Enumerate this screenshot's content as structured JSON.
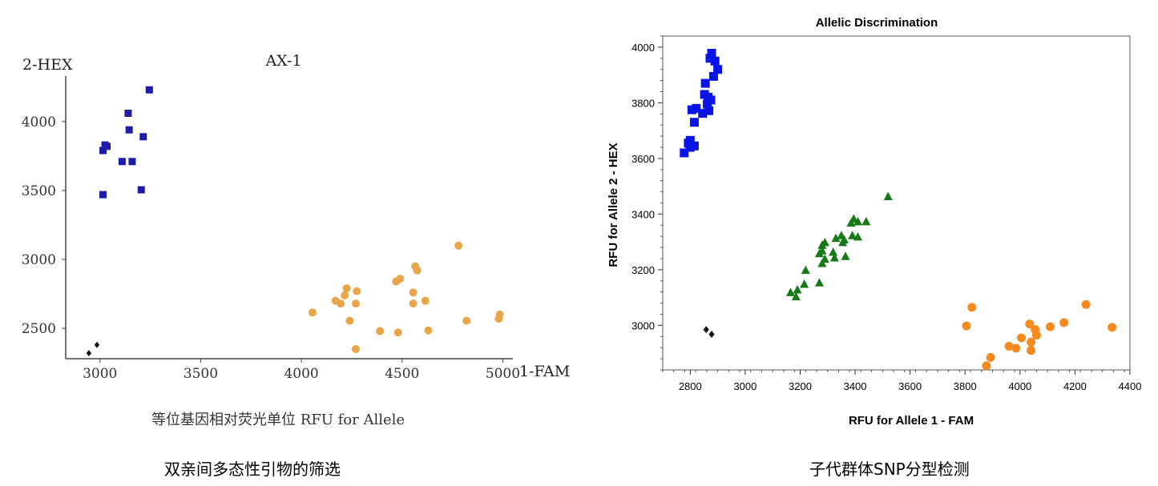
{
  "chart_data": [
    {
      "type": "scatter",
      "title": "AX-1",
      "xlabel": "1-FAM",
      "ylabel": "2-HEX",
      "xsublabel": "等位基因相对荧光单位 RFU for Allele",
      "caption": "双亲间多态性引物的筛选",
      "xlim": [
        2830,
        5050
      ],
      "ylim": [
        2280,
        4330
      ],
      "xticks": [
        3000,
        3500,
        4000,
        4500,
        5000
      ],
      "yticks": [
        2500,
        3000,
        3500,
        4000
      ],
      "grid": false,
      "series": [
        {
          "color": "#1c1ca8",
          "marker": "square",
          "points": [
            [
              3245,
              4230
            ],
            [
              3140,
              4060
            ],
            [
              3145,
              3940
            ],
            [
              3215,
              3890
            ],
            [
              3025,
              3830
            ],
            [
              3035,
              3820
            ],
            [
              3015,
              3790
            ],
            [
              3110,
              3710
            ],
            [
              3160,
              3710
            ],
            [
              3015,
              3470
            ],
            [
              3205,
              3505
            ]
          ]
        },
        {
          "color": "#e8a54a",
          "marker": "circle",
          "points": [
            [
              4780,
              3100
            ],
            [
              4565,
              2950
            ],
            [
              4575,
              2920
            ],
            [
              4490,
              2860
            ],
            [
              4470,
              2840
            ],
            [
              4225,
              2790
            ],
            [
              4275,
              2770
            ],
            [
              4555,
              2760
            ],
            [
              4215,
              2740
            ],
            [
              4170,
              2700
            ],
            [
              4195,
              2680
            ],
            [
              4270,
              2680
            ],
            [
              4555,
              2680
            ],
            [
              4615,
              2700
            ],
            [
              4055,
              2615
            ],
            [
              4985,
              2600
            ],
            [
              4980,
              2570
            ],
            [
              4820,
              2555
            ],
            [
              4240,
              2555
            ],
            [
              4390,
              2480
            ],
            [
              4480,
              2470
            ],
            [
              4630,
              2485
            ],
            [
              4270,
              2350
            ]
          ]
        },
        {
          "color": "#111111",
          "marker": "diamond",
          "points": [
            [
              2945,
              2320
            ],
            [
              2985,
              2380
            ]
          ]
        }
      ]
    },
    {
      "type": "scatter",
      "title": "Allelic Discrimination",
      "xlabel": "RFU for Allele 1 - FAM",
      "ylabel": "RFU for Allele 2 - HEX",
      "caption": "子代群体SNP分型检测",
      "xlim": [
        2700,
        4400
      ],
      "ylim": [
        2840,
        4040
      ],
      "xticks": [
        2800,
        3000,
        3200,
        3400,
        3600,
        3800,
        4000,
        4200,
        4400
      ],
      "yticks": [
        3000,
        3200,
        3400,
        3600,
        3800,
        4000
      ],
      "grid": false,
      "series": [
        {
          "color": "#0a14e6",
          "marker": "square",
          "points": [
            [
              2878,
              3978
            ],
            [
              2872,
              3960
            ],
            [
              2890,
              3950
            ],
            [
              2900,
              3920
            ],
            [
              2885,
              3895
            ],
            [
              2855,
              3870
            ],
            [
              2852,
              3830
            ],
            [
              2865,
              3820
            ],
            [
              2875,
              3810
            ],
            [
              2862,
              3795
            ],
            [
              2822,
              3780
            ],
            [
              2806,
              3775
            ],
            [
              2868,
              3772
            ],
            [
              2845,
              3762
            ],
            [
              2815,
              3730
            ],
            [
              2800,
              3665
            ],
            [
              2793,
              3655
            ],
            [
              2815,
              3645
            ],
            [
              2800,
              3640
            ],
            [
              2778,
              3620
            ]
          ]
        },
        {
          "color": "#157a15",
          "marker": "triangle",
          "points": [
            [
              3520,
              3465
            ],
            [
              3395,
              3385
            ],
            [
              3385,
              3370
            ],
            [
              3410,
              3375
            ],
            [
              3440,
              3375
            ],
            [
              3350,
              3325
            ],
            [
              3390,
              3325
            ],
            [
              3410,
              3320
            ],
            [
              3330,
              3315
            ],
            [
              3360,
              3310
            ],
            [
              3290,
              3300
            ],
            [
              3280,
              3290
            ],
            [
              3355,
              3300
            ],
            [
              3280,
              3270
            ],
            [
              3320,
              3265
            ],
            [
              3270,
              3260
            ],
            [
              3290,
              3240
            ],
            [
              3325,
              3245
            ],
            [
              3365,
              3250
            ],
            [
              3280,
              3225
            ],
            [
              3220,
              3200
            ],
            [
              3270,
              3155
            ],
            [
              3215,
              3150
            ],
            [
              3165,
              3120
            ],
            [
              3190,
              3130
            ],
            [
              3185,
              3105
            ]
          ]
        },
        {
          "color": "#f58a1f",
          "marker": "circle",
          "points": [
            [
              4240,
              3075
            ],
            [
              3825,
              3065
            ],
            [
              4160,
              3010
            ],
            [
              4035,
              3005
            ],
            [
              3805,
              2998
            ],
            [
              4110,
              2995
            ],
            [
              4335,
              2993
            ],
            [
              4055,
              2985
            ],
            [
              4060,
              2965
            ],
            [
              4005,
              2955
            ],
            [
              4040,
              2940
            ],
            [
              3960,
              2925
            ],
            [
              3985,
              2918
            ],
            [
              4040,
              2910
            ],
            [
              3893,
              2885
            ],
            [
              3878,
              2855
            ]
          ]
        },
        {
          "color": "#111111",
          "marker": "diamond",
          "points": [
            [
              2858,
              2985
            ],
            [
              2878,
              2968
            ]
          ]
        }
      ]
    }
  ]
}
